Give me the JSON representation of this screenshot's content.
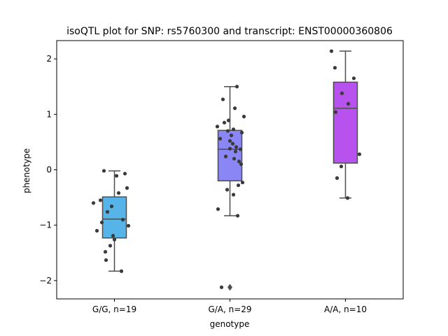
{
  "chart_data": {
    "type": "box",
    "title": "isoQTL plot for SNP: rs5760300 and transcript: ENST00000360806",
    "xlabel": "genotype",
    "ylabel": "phenotype",
    "ylim": [
      -2.33,
      2.33
    ],
    "yticks": [
      -2,
      -1,
      0,
      1,
      2
    ],
    "ytick_labels": [
      "−2",
      "−1",
      "0",
      "1",
      "2"
    ],
    "categories": [
      "G/G, n=19",
      "G/A, n=29",
      "A/A, n=10"
    ],
    "boxes": [
      {
        "category": "G/G, n=19",
        "color": "#56b4e9",
        "q1": -1.23,
        "median": -0.89,
        "q3": -0.49,
        "whisker_low": -1.83,
        "whisker_high": -0.02,
        "outliers": [],
        "points": [
          [
            -0.3,
            -0.6
          ],
          [
            -0.25,
            -1.1
          ],
          [
            -0.2,
            -0.55
          ],
          [
            -0.18,
            -0.95
          ],
          [
            -0.15,
            -0.02
          ],
          [
            -0.13,
            -1.48
          ],
          [
            -0.12,
            -1.63
          ],
          [
            -0.1,
            -0.76
          ],
          [
            -0.06,
            -1.37
          ],
          [
            -0.04,
            -0.66
          ],
          [
            -0.02,
            -1.19
          ],
          [
            0.0,
            -1.26
          ],
          [
            0.03,
            -0.11
          ],
          [
            0.06,
            -0.42
          ],
          [
            0.1,
            -1.83
          ],
          [
            0.12,
            -0.9
          ],
          [
            0.15,
            -0.07
          ],
          [
            0.18,
            -0.33
          ],
          [
            0.2,
            -1.01
          ]
        ]
      },
      {
        "category": "G/A, n=29",
        "color": "#8a86f5",
        "q1": -0.2,
        "median": 0.37,
        "q3": 0.71,
        "whisker_low": -0.83,
        "whisker_high": 1.5,
        "outliers": [
          -2.12
        ],
        "points": [
          [
            -0.18,
            0.78
          ],
          [
            -0.17,
            -0.71
          ],
          [
            -0.14,
            0.56
          ],
          [
            -0.1,
            1.27
          ],
          [
            -0.08,
            0.85
          ],
          [
            -0.06,
            0.24
          ],
          [
            -0.04,
            -0.36
          ],
          [
            -0.02,
            0.89
          ],
          [
            0.0,
            0.52
          ],
          [
            0.02,
            0.62
          ],
          [
            0.04,
            0.47
          ],
          [
            0.05,
            -0.45
          ],
          [
            0.06,
            0.2
          ],
          [
            0.07,
            1.11
          ],
          [
            0.08,
            0.33
          ],
          [
            0.09,
            0.41
          ],
          [
            0.1,
            1.5
          ],
          [
            0.11,
            -0.83
          ],
          [
            0.12,
            -0.28
          ],
          [
            0.13,
            0.15
          ],
          [
            0.15,
            0.37
          ],
          [
            0.16,
            0.1
          ],
          [
            0.17,
            0.67
          ],
          [
            0.18,
            -0.23
          ],
          [
            0.2,
            0.96
          ],
          [
            0.05,
            0.73
          ],
          [
            -0.12,
            -2.12
          ],
          [
            0.0,
            0.38
          ],
          [
            -0.03,
            0.7
          ]
        ]
      },
      {
        "category": "A/A, n=10",
        "color": "#b752ee",
        "q1": 0.12,
        "median": 1.11,
        "q3": 1.58,
        "whisker_low": -0.51,
        "whisker_high": 2.14,
        "outliers": [],
        "points": [
          [
            -0.2,
            2.14
          ],
          [
            -0.15,
            1.84
          ],
          [
            -0.14,
            1.04
          ],
          [
            -0.12,
            -0.15
          ],
          [
            -0.06,
            0.06
          ],
          [
            -0.05,
            1.38
          ],
          [
            0.03,
            -0.51
          ],
          [
            0.04,
            1.19
          ],
          [
            0.12,
            1.65
          ],
          [
            0.2,
            0.28
          ]
        ]
      }
    ]
  }
}
